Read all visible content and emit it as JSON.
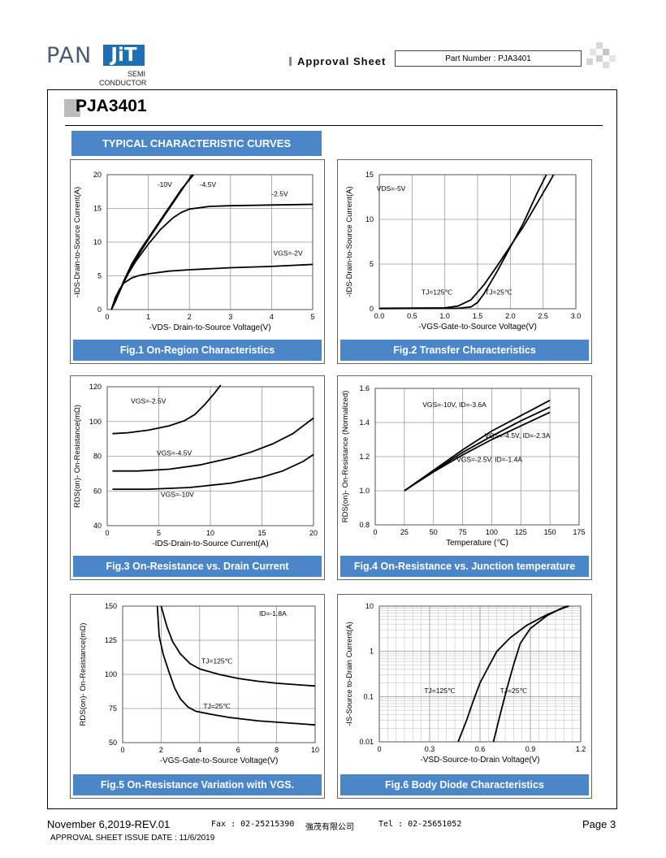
{
  "header": {
    "logo_pan": "PAN",
    "logo_jit": "JiT",
    "logo_sub1": "SEMI",
    "logo_sub2": "CONDUCTOR",
    "approval": "Approval  Sheet",
    "part_number": "Part Number : PJA3401"
  },
  "page_title": "PJA3401",
  "section_banner": "TYPICAL CHARACTERISTIC CURVES",
  "footer": {
    "date_rev": "November 6,2019-REV.01",
    "fax": "Fax : 02-25215390",
    "company": "強茂有限公司",
    "tel": "Tel : 02-25651052",
    "page": "Page 3",
    "issue_date": "APPROVAL SHEET ISSUE DATE : 11/6/2019"
  },
  "chart_data": [
    {
      "id": "fig1",
      "type": "line",
      "caption": "Fig.1 On-Region Characteristics",
      "xlabel": "-VDS- Drain-to-Source  Voltage(V)",
      "ylabel": "-IDS-Drain-to-Source Current(A)",
      "xlim": [
        0,
        5
      ],
      "ylim": [
        0,
        20
      ],
      "xticks": [
        "0",
        "1",
        "2",
        "3",
        "4",
        "5"
      ],
      "yticks": [
        "0",
        "5",
        "10",
        "15",
        "20"
      ],
      "labels": [
        {
          "text": "-10V",
          "x": 1.4,
          "y": 18.2
        },
        {
          "text": "-4.5V",
          "x": 2.45,
          "y": 18.2
        },
        {
          "text": "-2.5V",
          "x": 4.2,
          "y": 16.8
        },
        {
          "text": "VGS=-2V",
          "x": 4.4,
          "y": 8.0
        }
      ],
      "series": [
        {
          "points": [
            [
              0.1,
              0
            ],
            [
              0.2,
              1.2
            ],
            [
              0.4,
              4.2
            ],
            [
              0.6,
              6.8
            ],
            [
              0.8,
              8.8
            ],
            [
              1.0,
              10.6
            ],
            [
              1.2,
              12.4
            ],
            [
              1.4,
              14.2
            ],
            [
              1.6,
              16.0
            ],
            [
              1.8,
              17.8
            ],
            [
              2.1,
              20
            ]
          ]
        },
        {
          "points": [
            [
              0.1,
              0
            ],
            [
              0.2,
              1.2
            ],
            [
              0.4,
              4.0
            ],
            [
              0.6,
              6.5
            ],
            [
              0.8,
              8.5
            ],
            [
              1.0,
              10.4
            ],
            [
              1.2,
              12.2
            ],
            [
              1.4,
              14.0
            ],
            [
              1.6,
              15.8
            ],
            [
              1.8,
              17.6
            ],
            [
              2.0,
              19.4
            ],
            [
              2.06,
              20
            ]
          ]
        },
        {
          "points": [
            [
              0.1,
              0
            ],
            [
              0.3,
              2.8
            ],
            [
              0.5,
              5.2
            ],
            [
              0.7,
              7.2
            ],
            [
              1.0,
              9.7
            ],
            [
              1.3,
              11.9
            ],
            [
              1.6,
              13.6
            ],
            [
              1.8,
              14.4
            ],
            [
              2.0,
              14.9
            ],
            [
              2.5,
              15.3
            ],
            [
              3.0,
              15.4
            ],
            [
              4.0,
              15.5
            ],
            [
              5.0,
              15.6
            ]
          ]
        },
        {
          "points": [
            [
              0.1,
              0
            ],
            [
              0.2,
              1.8
            ],
            [
              0.3,
              3.0
            ],
            [
              0.4,
              3.9
            ],
            [
              0.6,
              4.7
            ],
            [
              0.8,
              5.1
            ],
            [
              1.0,
              5.3
            ],
            [
              1.5,
              5.7
            ],
            [
              2.0,
              5.9
            ],
            [
              3.0,
              6.2
            ],
            [
              4.0,
              6.4
            ],
            [
              5.0,
              6.7
            ]
          ]
        }
      ]
    },
    {
      "id": "fig2",
      "type": "line",
      "caption": "Fig.2 Transfer Characteristics",
      "xlabel": "-VGS-Gate-to-Source Voltage(V)",
      "ylabel": "-IDS-Drain-to-Source Current(A)",
      "xlim": [
        0,
        3
      ],
      "ylim": [
        0,
        15
      ],
      "xticks": [
        "0.0",
        "0.5",
        "1.0",
        "1.5",
        "2.0",
        "2.5",
        "3.0"
      ],
      "yticks": [
        "0",
        "5",
        "10",
        "15"
      ],
      "labels": [
        {
          "text": "VDS=-5V",
          "x": 0.18,
          "y": 13.2
        },
        {
          "text": "TJ=125℃",
          "x": 0.88,
          "y": 1.6
        },
        {
          "text": "TJ=25℃",
          "x": 1.82,
          "y": 1.6
        }
      ],
      "series": [
        {
          "points": [
            [
              0,
              0.05
            ],
            [
              1.0,
              0.1
            ],
            [
              1.2,
              0.3
            ],
            [
              1.4,
              1.0
            ],
            [
              1.6,
              2.7
            ],
            [
              1.8,
              4.8
            ],
            [
              2.0,
              7.0
            ],
            [
              2.2,
              9.2
            ],
            [
              2.4,
              11.7
            ],
            [
              2.6,
              14.2
            ],
            [
              2.66,
              15
            ]
          ]
        },
        {
          "points": [
            [
              0,
              0.02
            ],
            [
              1.2,
              0.05
            ],
            [
              1.4,
              0.2
            ],
            [
              1.5,
              0.7
            ],
            [
              1.6,
              1.7
            ],
            [
              1.8,
              4.2
            ],
            [
              2.0,
              6.9
            ],
            [
              2.2,
              9.6
            ],
            [
              2.4,
              12.8
            ],
            [
              2.55,
              15
            ]
          ]
        }
      ]
    },
    {
      "id": "fig3",
      "type": "line",
      "caption": "Fig.3 On-Resistance vs. Drain Current",
      "xlabel": "-IDS-Drain-to-Source  Current(A)",
      "ylabel": "RDS(on)- On-Resistance(mΩ)",
      "xlim": [
        0,
        20
      ],
      "ylim": [
        40,
        120
      ],
      "xticks": [
        "0",
        "5",
        "10",
        "15",
        "20"
      ],
      "yticks": [
        "40",
        "60",
        "80",
        "100",
        "120"
      ],
      "labels": [
        {
          "text": "VGS=-2.5V",
          "x": 4.0,
          "y": 110.5
        },
        {
          "text": "VGS=-4.5V",
          "x": 6.5,
          "y": 80.5
        },
        {
          "text": "VGS=-10V",
          "x": 6.8,
          "y": 56.5
        }
      ],
      "series": [
        {
          "points": [
            [
              0.5,
              93
            ],
            [
              2,
              93.5
            ],
            [
              4,
              95
            ],
            [
              6,
              97.5
            ],
            [
              7.5,
              100.5
            ],
            [
              8.5,
              104
            ],
            [
              9.5,
              110
            ],
            [
              10.5,
              117
            ],
            [
              11,
              121
            ]
          ]
        },
        {
          "points": [
            [
              0.5,
              71.5
            ],
            [
              3,
              71.5
            ],
            [
              6,
              72.5
            ],
            [
              9,
              75
            ],
            [
              12,
              79
            ],
            [
              14,
              82.5
            ],
            [
              16,
              87
            ],
            [
              18,
              93
            ],
            [
              20,
              102
            ]
          ]
        },
        {
          "points": [
            [
              0.5,
              61
            ],
            [
              4,
              61
            ],
            [
              8,
              62
            ],
            [
              12,
              64.5
            ],
            [
              15,
              68
            ],
            [
              17,
              71.5
            ],
            [
              19,
              77
            ],
            [
              20,
              81
            ]
          ]
        }
      ]
    },
    {
      "id": "fig4",
      "type": "line",
      "caption": "Fig.4 On-Resistance vs. Junction temperature",
      "xlabel": "Temperature (℃)",
      "ylabel": "RDS(on)- On-Resistance (Normalized)",
      "xlim": [
        0,
        175
      ],
      "ylim": [
        0.8,
        1.6
      ],
      "xticks": [
        "0",
        "25",
        "50",
        "75",
        "100",
        "125",
        "150",
        "175"
      ],
      "yticks": [
        "0.8",
        "1.0",
        "1.2",
        "1.4",
        "1.6"
      ],
      "labels": [
        {
          "text": "VGS=-10V, ID=-3.6A",
          "x": 68,
          "y": 1.49
        },
        {
          "text": "VGS=-4.5V, ID=-2.3A",
          "x": 122,
          "y": 1.31
        },
        {
          "text": "VGS=-2.5V, ID=-1.4A",
          "x": 98,
          "y": 1.17
        }
      ],
      "series": [
        {
          "points": [
            [
              25,
              1.0
            ],
            [
              50,
              1.12
            ],
            [
              75,
              1.24
            ],
            [
              100,
              1.35
            ],
            [
              125,
              1.44
            ],
            [
              150,
              1.53
            ]
          ]
        },
        {
          "points": [
            [
              25,
              1.0
            ],
            [
              50,
              1.115
            ],
            [
              75,
              1.225
            ],
            [
              100,
              1.32
            ],
            [
              125,
              1.41
            ],
            [
              150,
              1.49
            ]
          ]
        },
        {
          "points": [
            [
              25,
              1.0
            ],
            [
              50,
              1.11
            ],
            [
              75,
              1.21
            ],
            [
              100,
              1.3
            ],
            [
              125,
              1.38
            ],
            [
              150,
              1.46
            ]
          ]
        }
      ]
    },
    {
      "id": "fig5",
      "type": "line",
      "caption": "Fig.5 On-Resistance Variation with VGS.",
      "xlabel": "-VGS-Gate-to-Source  Voltage(V)",
      "ylabel": "RDS(on)- On-Resistance(mΩ)",
      "xlim": [
        0,
        10
      ],
      "ylim": [
        50,
        150
      ],
      "xticks": [
        "0",
        "2",
        "4",
        "6",
        "8",
        "10"
      ],
      "yticks": [
        "50",
        "75",
        "100",
        "125",
        "150"
      ],
      "labels": [
        {
          "text": "ID=-1.8A",
          "x": 7.8,
          "y": 143
        },
        {
          "text": "TJ=125℃",
          "x": 4.9,
          "y": 108
        },
        {
          "text": "TJ=25℃",
          "x": 4.9,
          "y": 75
        }
      ],
      "series": [
        {
          "points": [
            [
              2.0,
              150
            ],
            [
              2.3,
              135
            ],
            [
              2.6,
              124
            ],
            [
              3,
              115
            ],
            [
              3.5,
              108
            ],
            [
              4,
              104
            ],
            [
              5,
              100
            ],
            [
              6,
              97
            ],
            [
              7,
              95
            ],
            [
              8,
              93.5
            ],
            [
              9,
              92.5
            ],
            [
              10,
              91.5
            ]
          ]
        },
        {
          "points": [
            [
              1.8,
              150
            ],
            [
              1.9,
              128
            ],
            [
              2.1,
              115
            ],
            [
              2.4,
              102
            ],
            [
              2.7,
              90
            ],
            [
              3.0,
              82
            ],
            [
              3.4,
              76
            ],
            [
              3.8,
              73
            ],
            [
              4.5,
              71
            ],
            [
              5.5,
              68.5
            ],
            [
              7,
              66
            ],
            [
              8.5,
              64.5
            ],
            [
              10,
              63
            ]
          ]
        }
      ]
    },
    {
      "id": "fig6",
      "type": "line",
      "caption": "Fig.6 Body Diode Characteristics",
      "xlabel": "-VSD-Source-to-Drain Voltage(V)",
      "ylabel": "-IS-Source  to-Drain Current(A)",
      "xlim": [
        0,
        1.2
      ],
      "ylim": [
        0.01,
        10
      ],
      "yscale": "log",
      "xticks": [
        "0",
        "0.3",
        "0.6",
        "0.9",
        "1.2"
      ],
      "yticks": [
        "0.01",
        "0.1",
        "1",
        "10"
      ],
      "labels": [
        {
          "text": "TJ=125℃",
          "x": 0.36,
          "y": 0.12
        },
        {
          "text": "TJ=25℃",
          "x": 0.8,
          "y": 0.12
        }
      ],
      "series": [
        {
          "points": [
            [
              0.47,
              0.01
            ],
            [
              0.52,
              0.03
            ],
            [
              0.56,
              0.08
            ],
            [
              0.6,
              0.2
            ],
            [
              0.65,
              0.45
            ],
            [
              0.7,
              1.0
            ],
            [
              0.78,
              2.0
            ],
            [
              0.88,
              3.8
            ],
            [
              1.0,
              6.5
            ],
            [
              1.1,
              9.2
            ],
            [
              1.13,
              10
            ]
          ]
        },
        {
          "points": [
            [
              0.68,
              0.01
            ],
            [
              0.72,
              0.04
            ],
            [
              0.76,
              0.15
            ],
            [
              0.8,
              0.5
            ],
            [
              0.84,
              1.5
            ],
            [
              0.9,
              3.2
            ],
            [
              1.0,
              6.2
            ],
            [
              1.08,
              8.8
            ],
            [
              1.12,
              10
            ]
          ]
        }
      ]
    }
  ]
}
